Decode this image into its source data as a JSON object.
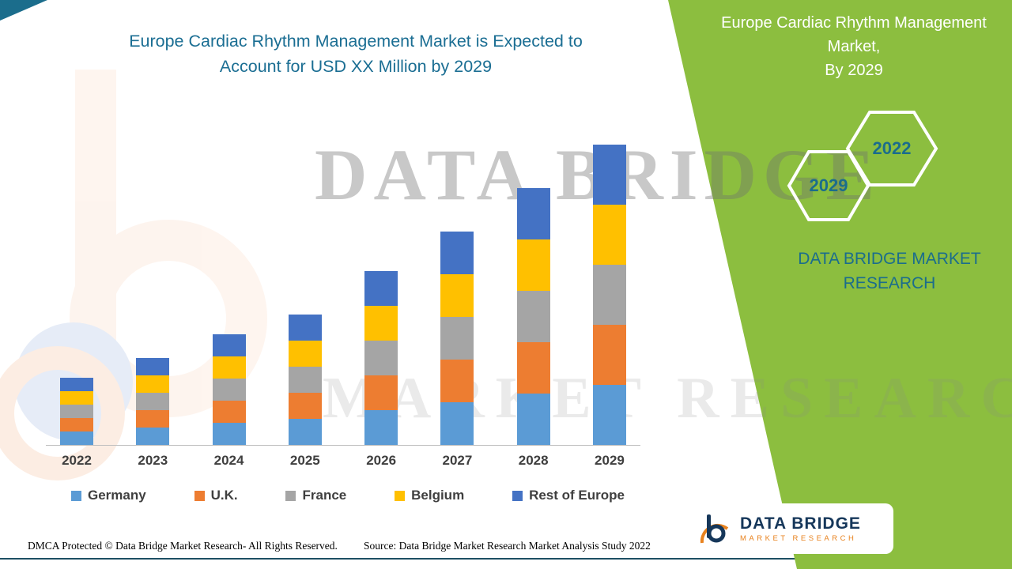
{
  "title": {
    "line1": "Europe Cardiac Rhythm Management Market is Expected to",
    "line2": "Account for  USD XX Million by 2029"
  },
  "right_panel": {
    "heading_line1": "Europe Cardiac Rhythm Management Market,",
    "heading_line2": "By 2029",
    "hexagon_left_label": "2029",
    "hexagon_right_label": "2022",
    "brand_line1": "DATA BRIDGE MARKET",
    "brand_line2": "RESEARCH",
    "green_color": "#8cbe3f",
    "teal_color": "#1b6d8c"
  },
  "watermark": {
    "line1": "DATA BRIDGE",
    "line2": "MARKET RESEARCH"
  },
  "footer": {
    "dmca": "DMCA Protected © Data Bridge Market Research- All Rights Reserved.",
    "source": "Source: Data Bridge Market Research Market Analysis Study 2022",
    "logo_line1": "DATA BRIDGE",
    "logo_line2": "MARKET RESEARCH"
  },
  "chart_data": {
    "type": "bar",
    "stacked": true,
    "title": "Europe Cardiac Rhythm Management Market is Expected to Account for USD XX Million by 2029",
    "xlabel": "",
    "ylabel": "",
    "note": "No numeric value axis is shown in the image; values are relative units estimated from bar heights (USD XX Million undisclosed).",
    "categories": [
      "2022",
      "2023",
      "2024",
      "2025",
      "2026",
      "2027",
      "2028",
      "2029"
    ],
    "series": [
      {
        "name": "Germany",
        "color": "#5b9bd5",
        "values": [
          17,
          22,
          28,
          33,
          44,
          54,
          65,
          76
        ]
      },
      {
        "name": "U.K.",
        "color": "#ed7d31",
        "values": [
          17,
          22,
          28,
          33,
          44,
          54,
          65,
          76
        ]
      },
      {
        "name": "France",
        "color": "#a5a5a5",
        "values": [
          17,
          22,
          28,
          33,
          44,
          54,
          65,
          76
        ]
      },
      {
        "name": "Belgium",
        "color": "#ffc000",
        "values": [
          17,
          22,
          28,
          33,
          44,
          54,
          65,
          76
        ]
      },
      {
        "name": "Rest of Europe",
        "color": "#4472c4",
        "values": [
          17,
          22,
          28,
          33,
          44,
          54,
          65,
          76
        ]
      }
    ],
    "legend_position": "bottom",
    "grid": false
  }
}
